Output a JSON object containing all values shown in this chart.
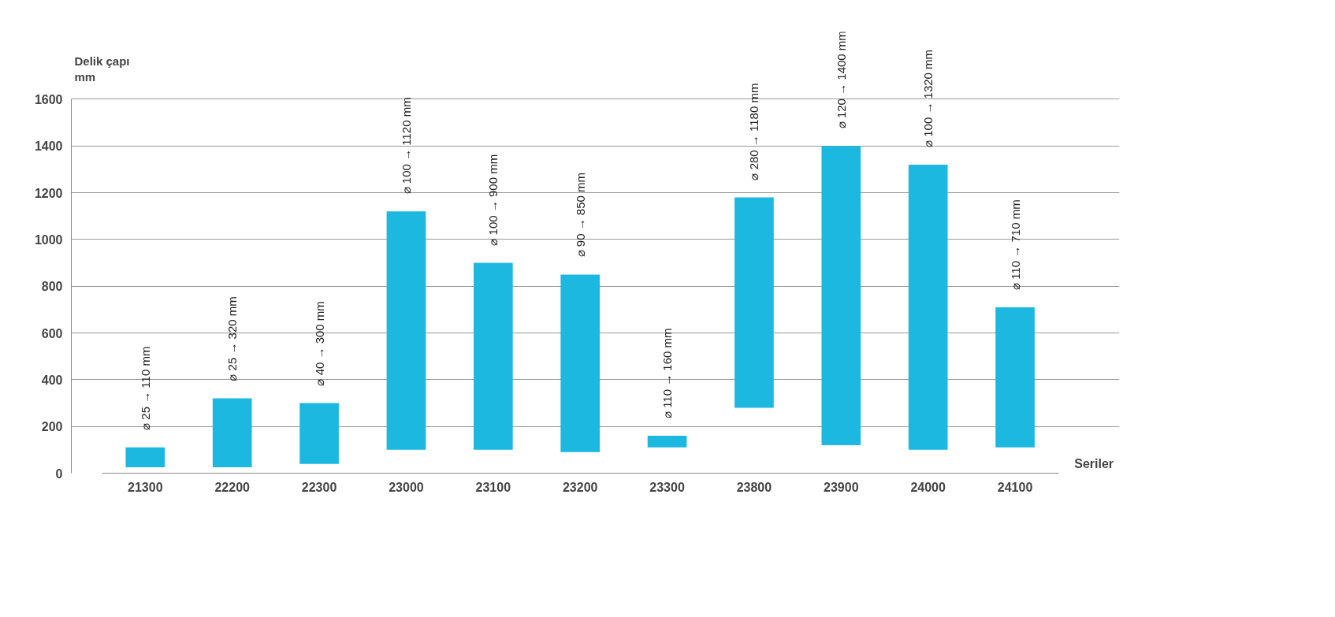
{
  "chart_data": {
    "type": "bar",
    "ylabel": "Delik çapı\nmm",
    "xlabel": "Seriler",
    "categories": [
      "21300",
      "22200",
      "22300",
      "23000",
      "23100",
      "23200",
      "23300",
      "23800",
      "23900",
      "24000",
      "24100"
    ],
    "base": [
      25,
      25,
      40,
      100,
      100,
      90,
      110,
      280,
      120,
      100,
      110
    ],
    "values": [
      85,
      295,
      260,
      1020,
      800,
      760,
      50,
      900,
      1280,
      1220,
      600
    ],
    "value_labels": [
      "⌀ 25 → 110 mm",
      "⌀ 25 → 320 mm",
      "⌀ 40 → 300 mm",
      "⌀ 100 → 1120 mm",
      "⌀ 100 → 900 mm",
      "⌀ 90 → 850 mm",
      "⌀ 110 → 160 mm",
      "⌀ 280 → 1180 mm",
      "⌀ 120 → 1400 mm",
      "⌀ 100 → 1320 mm",
      "⌀ 110 → 710 mm"
    ],
    "color": "#1cb8e0",
    "ylim": [
      0,
      1600
    ],
    "yticks": [
      0,
      200,
      400,
      600,
      800,
      1000,
      1200,
      1400,
      1600
    ],
    "grid": "y"
  }
}
